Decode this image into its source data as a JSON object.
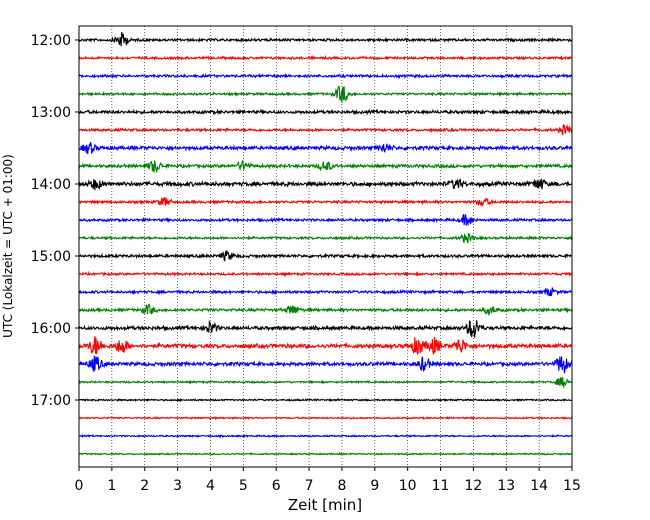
{
  "chart_data": {
    "type": "line",
    "title": "",
    "xlabel": "Zeit  [min]",
    "ylabel": "UTC (Lokalzeit = UTC + 01:00)",
    "xlim": [
      0,
      15
    ],
    "x_ticks": [
      0,
      1,
      2,
      3,
      4,
      5,
      6,
      7,
      8,
      9,
      10,
      11,
      12,
      13,
      14,
      15
    ],
    "x_tick_labels": [
      "0",
      "1",
      "2",
      "3",
      "4",
      "5",
      "6",
      "7",
      "8",
      "9",
      "10",
      "11",
      "12",
      "13",
      "14",
      "15"
    ],
    "y_tick_labels": [
      "12:00",
      "13:00",
      "14:00",
      "15:00",
      "16:00",
      "17:00"
    ],
    "grid": "vertical dotted at each minute",
    "trace_colors": [
      "#000000",
      "#ff0000",
      "#0000ff",
      "#008000"
    ],
    "traces": [
      {
        "start": "12:00",
        "amplitude": 0.5,
        "bursts": [
          {
            "x": 1.3,
            "amp": 1.6
          }
        ]
      },
      {
        "start": "12:15",
        "amplitude": 0.45,
        "bursts": []
      },
      {
        "start": "12:30",
        "amplitude": 0.5,
        "bursts": []
      },
      {
        "start": "12:45",
        "amplitude": 0.45,
        "bursts": [
          {
            "x": 8.0,
            "amp": 2.0
          }
        ]
      },
      {
        "start": "13:00",
        "amplitude": 0.6,
        "bursts": []
      },
      {
        "start": "13:15",
        "amplitude": 0.5,
        "bursts": [
          {
            "x": 14.8,
            "amp": 1.0
          }
        ]
      },
      {
        "start": "13:30",
        "amplitude": 0.7,
        "bursts": [
          {
            "x": 0.3,
            "amp": 1.1
          },
          {
            "x": 9.3,
            "amp": 0.9
          }
        ]
      },
      {
        "start": "13:45",
        "amplitude": 0.6,
        "bursts": [
          {
            "x": 2.3,
            "amp": 1.3
          },
          {
            "x": 5.0,
            "amp": 0.9
          },
          {
            "x": 7.5,
            "amp": 1.0
          }
        ]
      },
      {
        "start": "14:00",
        "amplitude": 0.8,
        "bursts": [
          {
            "x": 0.5,
            "amp": 1.0
          },
          {
            "x": 11.5,
            "amp": 1.0
          },
          {
            "x": 14.0,
            "amp": 1.1
          }
        ]
      },
      {
        "start": "14:15",
        "amplitude": 0.5,
        "bursts": [
          {
            "x": 2.6,
            "amp": 0.9
          },
          {
            "x": 12.3,
            "amp": 0.8
          }
        ]
      },
      {
        "start": "14:30",
        "amplitude": 0.5,
        "bursts": [
          {
            "x": 11.8,
            "amp": 1.2
          }
        ]
      },
      {
        "start": "14:45",
        "amplitude": 0.45,
        "bursts": [
          {
            "x": 11.8,
            "amp": 0.9
          }
        ]
      },
      {
        "start": "15:00",
        "amplitude": 0.55,
        "bursts": [
          {
            "x": 4.5,
            "amp": 0.9
          }
        ]
      },
      {
        "start": "15:15",
        "amplitude": 0.45,
        "bursts": []
      },
      {
        "start": "15:30",
        "amplitude": 0.5,
        "bursts": [
          {
            "x": 14.3,
            "amp": 0.8
          }
        ]
      },
      {
        "start": "15:45",
        "amplitude": 0.55,
        "bursts": [
          {
            "x": 2.1,
            "amp": 1.0
          },
          {
            "x": 6.5,
            "amp": 1.0
          },
          {
            "x": 12.5,
            "amp": 0.8
          }
        ]
      },
      {
        "start": "16:00",
        "amplitude": 0.7,
        "bursts": [
          {
            "x": 4.0,
            "amp": 1.2
          },
          {
            "x": 12.0,
            "amp": 2.3
          }
        ]
      },
      {
        "start": "16:15",
        "amplitude": 0.8,
        "bursts": [
          {
            "x": 0.5,
            "amp": 2.0
          },
          {
            "x": 1.3,
            "amp": 1.5
          },
          {
            "x": 10.3,
            "amp": 1.8
          },
          {
            "x": 10.8,
            "amp": 1.6
          },
          {
            "x": 11.6,
            "amp": 1.5
          }
        ]
      },
      {
        "start": "16:30",
        "amplitude": 0.7,
        "bursts": [
          {
            "x": 0.5,
            "amp": 1.6
          },
          {
            "x": 10.5,
            "amp": 1.4
          },
          {
            "x": 14.7,
            "amp": 2.0
          }
        ]
      },
      {
        "start": "16:45",
        "amplitude": 0.35,
        "bursts": [
          {
            "x": 14.7,
            "amp": 1.0
          }
        ]
      },
      {
        "start": "17:00",
        "amplitude": 0.3,
        "bursts": []
      },
      {
        "start": "17:15",
        "amplitude": 0.3,
        "bursts": []
      },
      {
        "start": "17:30",
        "amplitude": 0.3,
        "bursts": []
      },
      {
        "start": "17:45",
        "amplitude": 0.28,
        "bursts": []
      }
    ]
  }
}
